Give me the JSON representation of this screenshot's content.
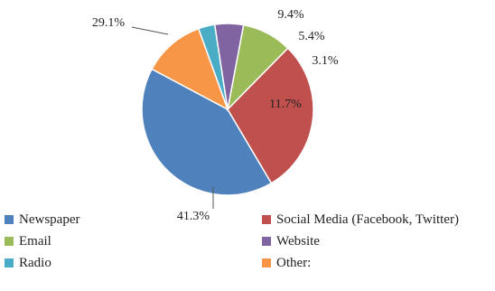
{
  "chart_data": {
    "type": "pie",
    "title": "",
    "legend_position": "bottom",
    "slices": [
      {
        "label": "Newspaper",
        "value": 41.3,
        "display": "41.3%",
        "color": "#4F81BD"
      },
      {
        "label": "Social Media (Facebook, Twitter)",
        "value": 29.1,
        "display": "29.1%",
        "color": "#C0504D"
      },
      {
        "label": "Email",
        "value": 9.4,
        "display": "9.4%",
        "color": "#9BBB59"
      },
      {
        "label": "Website",
        "value": 5.4,
        "display": "5.4%",
        "color": "#8064A2"
      },
      {
        "label": "Radio",
        "value": 3.1,
        "display": "3.1%",
        "color": "#4BACC6"
      },
      {
        "label": "Other:",
        "value": 11.7,
        "display": "11.7%",
        "color": "#F79646"
      }
    ]
  }
}
